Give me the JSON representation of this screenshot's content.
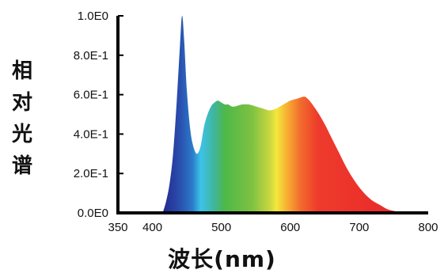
{
  "chart_data": {
    "type": "area",
    "xlabel": "波长(nm)",
    "ylabel": "相对光谱",
    "xlim": [
      350,
      800
    ],
    "ylim": [
      0,
      1.0
    ],
    "x_ticks": [
      {
        "value": 350,
        "label": "350"
      },
      {
        "value": 400,
        "label": "400"
      },
      {
        "value": 500,
        "label": "500"
      },
      {
        "value": 600,
        "label": "600"
      },
      {
        "value": 700,
        "label": "700"
      },
      {
        "value": 800,
        "label": "800"
      }
    ],
    "y_ticks": [
      {
        "value": 0.0,
        "label": "0.0E0"
      },
      {
        "value": 0.2,
        "label": "2.0E-1"
      },
      {
        "value": 0.4,
        "label": "4.0E-1"
      },
      {
        "value": 0.6,
        "label": "6.0E-1"
      },
      {
        "value": 0.8,
        "label": "8.0E-1"
      },
      {
        "value": 1.0,
        "label": "1.0E0"
      }
    ],
    "series": [
      {
        "x": [
          415,
          420,
          425,
          430,
          435,
          440,
          443,
          446,
          450,
          455,
          460,
          465,
          470,
          475,
          480,
          485,
          490,
          495,
          500,
          505,
          510,
          515,
          520,
          530,
          540,
          550,
          560,
          570,
          580,
          590,
          600,
          610,
          620,
          625,
          630,
          640,
          650,
          660,
          670,
          680,
          690,
          700,
          710,
          720,
          730,
          740,
          750,
          760,
          770,
          780
        ],
        "y": [
          0.0,
          0.06,
          0.15,
          0.3,
          0.55,
          0.85,
          1.0,
          0.88,
          0.62,
          0.42,
          0.33,
          0.3,
          0.34,
          0.44,
          0.5,
          0.54,
          0.56,
          0.57,
          0.56,
          0.55,
          0.55,
          0.54,
          0.54,
          0.55,
          0.55,
          0.54,
          0.53,
          0.52,
          0.53,
          0.55,
          0.57,
          0.58,
          0.59,
          0.58,
          0.56,
          0.51,
          0.45,
          0.38,
          0.31,
          0.24,
          0.18,
          0.13,
          0.09,
          0.06,
          0.04,
          0.02,
          0.01,
          0.005,
          0.002,
          0.0
        ]
      }
    ],
    "fill_gradient_by_wavelength": [
      {
        "nm": 415,
        "color": "#25288f"
      },
      {
        "nm": 440,
        "color": "#2a4fae"
      },
      {
        "nm": 458,
        "color": "#2a7bc9"
      },
      {
        "nm": 470,
        "color": "#3cc3ea"
      },
      {
        "nm": 490,
        "color": "#40b59a"
      },
      {
        "nm": 505,
        "color": "#4db848"
      },
      {
        "nm": 545,
        "color": "#7ec242"
      },
      {
        "nm": 570,
        "color": "#c9d640"
      },
      {
        "nm": 580,
        "color": "#f4e83a"
      },
      {
        "nm": 595,
        "color": "#f7b034"
      },
      {
        "nm": 615,
        "color": "#f26b2d"
      },
      {
        "nm": 640,
        "color": "#ee3b2c"
      },
      {
        "nm": 780,
        "color": "#e8262a"
      }
    ]
  }
}
